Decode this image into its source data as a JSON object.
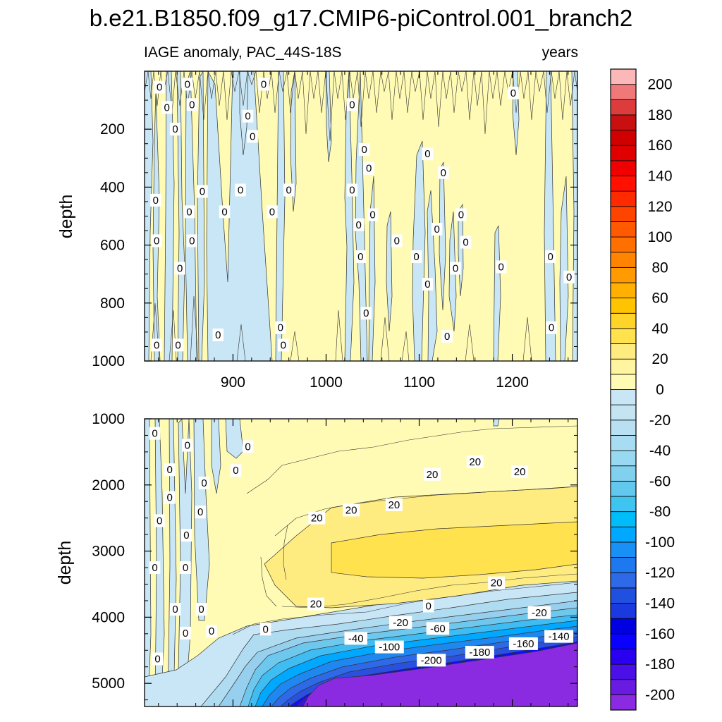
{
  "chart_data": [
    {
      "type": "heatmap",
      "title": "b.e21.B1850.f09_g17.CMIP6-piControl.001_branch2",
      "left_label": "IAGE anomaly, PAC_44S-18S",
      "right_label": "years",
      "ylabel": "depth",
      "xlim": [
        805,
        1270
      ],
      "ylim": [
        1000,
        0
      ],
      "x_ticks": [
        900,
        1000,
        1100,
        1200
      ],
      "x_tick_labels": [
        "900",
        "1000",
        "1100",
        "1200"
      ],
      "y_ticks": [
        200,
        400,
        600,
        800,
        1000
      ],
      "y_tick_labels": [
        "200",
        "400",
        "600",
        "800",
        "1000"
      ],
      "description_levels": "field alternates between 0..10 (pale yellow) and -10..0 (pale blue) with many narrow zero-contour bands",
      "contour_labels": [
        {
          "text": "0",
          "x": 821,
          "depth": 55
        },
        {
          "text": "0",
          "x": 851,
          "depth": 45
        },
        {
          "text": "0",
          "x": 933,
          "depth": 45
        },
        {
          "text": "0",
          "x": 829,
          "depth": 125
        },
        {
          "text": "0",
          "x": 856,
          "depth": 115
        },
        {
          "text": "0",
          "x": 1028,
          "depth": 115
        },
        {
          "text": "0",
          "x": 1201,
          "depth": 75
        },
        {
          "text": "0",
          "x": 838,
          "depth": 200
        },
        {
          "text": "0",
          "x": 916,
          "depth": 155
        },
        {
          "text": "0",
          "x": 921,
          "depth": 225
        },
        {
          "text": "0",
          "x": 1041,
          "depth": 270
        },
        {
          "text": "0",
          "x": 1109,
          "depth": 285
        },
        {
          "text": "0",
          "x": 1046,
          "depth": 335
        },
        {
          "text": "0",
          "x": 1126,
          "depth": 350
        },
        {
          "text": "0",
          "x": 867,
          "depth": 415
        },
        {
          "text": "0",
          "x": 908,
          "depth": 410
        },
        {
          "text": "0",
          "x": 960,
          "depth": 410
        },
        {
          "text": "0",
          "x": 1028,
          "depth": 410
        },
        {
          "text": "0",
          "x": 817,
          "depth": 445
        },
        {
          "text": "0",
          "x": 853,
          "depth": 485
        },
        {
          "text": "0",
          "x": 891,
          "depth": 485
        },
        {
          "text": "0",
          "x": 942,
          "depth": 485
        },
        {
          "text": "0",
          "x": 1050,
          "depth": 495
        },
        {
          "text": "0",
          "x": 1145,
          "depth": 495
        },
        {
          "text": "0",
          "x": 1035,
          "depth": 530
        },
        {
          "text": "0",
          "x": 1119,
          "depth": 545
        },
        {
          "text": "0",
          "x": 1150,
          "depth": 590
        },
        {
          "text": "0",
          "x": 818,
          "depth": 585
        },
        {
          "text": "0",
          "x": 856,
          "depth": 585
        },
        {
          "text": "0",
          "x": 1076,
          "depth": 585
        },
        {
          "text": "0",
          "x": 1037,
          "depth": 640
        },
        {
          "text": "0",
          "x": 1097,
          "depth": 640
        },
        {
          "text": "0",
          "x": 1241,
          "depth": 640
        },
        {
          "text": "0",
          "x": 843,
          "depth": 680
        },
        {
          "text": "0",
          "x": 1139,
          "depth": 680
        },
        {
          "text": "0",
          "x": 1188,
          "depth": 675
        },
        {
          "text": "0",
          "x": 1261,
          "depth": 710
        },
        {
          "text": "0",
          "x": 1109,
          "depth": 735
        },
        {
          "text": "0",
          "x": 1043,
          "depth": 835
        },
        {
          "text": "0",
          "x": 1242,
          "depth": 885
        },
        {
          "text": "0",
          "x": 951,
          "depth": 885
        },
        {
          "text": "0",
          "x": 884,
          "depth": 910
        },
        {
          "text": "0",
          "x": 1130,
          "depth": 915
        },
        {
          "text": "0",
          "x": 818,
          "depth": 945
        },
        {
          "text": "0",
          "x": 841,
          "depth": 945
        },
        {
          "text": "0",
          "x": 954,
          "depth": 945
        }
      ]
    },
    {
      "type": "heatmap",
      "ylabel": "depth",
      "xlim": [
        805,
        1270
      ],
      "ylim": [
        5350,
        1000
      ],
      "x_ticks": [
        900,
        1000,
        1100,
        1200
      ],
      "y_ticks": [
        1000,
        2000,
        3000,
        4000,
        5000
      ],
      "y_tick_labels": [
        "1000",
        "2000",
        "3000",
        "4000",
        "5000"
      ],
      "description_levels": "0..20 yellow above ~4000 m, 20..40 core around 2500-3500 m, strongly negative (down to below -200) near the bottom, deepening eastward",
      "contour_labels": [
        {
          "text": "0",
          "x": 816,
          "depth": 1220
        },
        {
          "text": "0",
          "x": 851,
          "depth": 1400
        },
        {
          "text": "0",
          "x": 916,
          "depth": 1420
        },
        {
          "text": "0",
          "x": 832,
          "depth": 1770
        },
        {
          "text": "0",
          "x": 903,
          "depth": 1780
        },
        {
          "text": "0",
          "x": 869,
          "depth": 1970
        },
        {
          "text": "0",
          "x": 832,
          "depth": 2190
        },
        {
          "text": "0",
          "x": 865,
          "depth": 2410
        },
        {
          "text": "0",
          "x": 821,
          "depth": 2540
        },
        {
          "text": "0",
          "x": 850,
          "depth": 2760
        },
        {
          "text": "0",
          "x": 816,
          "depth": 3250
        },
        {
          "text": "0",
          "x": 849,
          "depth": 3250
        },
        {
          "text": "0",
          "x": 838,
          "depth": 3880
        },
        {
          "text": "0",
          "x": 866,
          "depth": 3880
        },
        {
          "text": "0",
          "x": 849,
          "depth": 4240
        },
        {
          "text": "0",
          "x": 877,
          "depth": 4210
        },
        {
          "text": "0",
          "x": 819,
          "depth": 4630
        },
        {
          "text": "0",
          "x": 935,
          "depth": 4180
        },
        {
          "text": "0",
          "x": 1110,
          "depth": 3830
        },
        {
          "text": "20",
          "x": 1160,
          "depth": 1650
        },
        {
          "text": "20",
          "x": 1114,
          "depth": 1840
        },
        {
          "text": "20",
          "x": 1208,
          "depth": 1800
        },
        {
          "text": "20",
          "x": 990,
          "depth": 2500
        },
        {
          "text": "20",
          "x": 1027,
          "depth": 2380
        },
        {
          "text": "20",
          "x": 1073,
          "depth": 2300
        },
        {
          "text": "20",
          "x": 1183,
          "depth": 3480
        },
        {
          "text": "20",
          "x": 989,
          "depth": 3800
        },
        {
          "text": "-20",
          "x": 1229,
          "depth": 3930
        },
        {
          "text": "-20",
          "x": 1080,
          "depth": 4080
        },
        {
          "text": "-60",
          "x": 1120,
          "depth": 4170
        },
        {
          "text": "-40",
          "x": 1032,
          "depth": 4320
        },
        {
          "text": "-100",
          "x": 1068,
          "depth": 4450
        },
        {
          "text": "-200",
          "x": 1113,
          "depth": 4650
        },
        {
          "text": "-180",
          "x": 1165,
          "depth": 4530
        },
        {
          "text": "-160",
          "x": 1212,
          "depth": 4400
        },
        {
          "text": "-140",
          "x": 1250,
          "depth": 4290
        }
      ]
    },
    {
      "type": "colorbar",
      "levels": [
        -210,
        -200,
        -190,
        -180,
        -170,
        -160,
        -150,
        -140,
        -130,
        -120,
        -110,
        -100,
        -90,
        -80,
        -70,
        -60,
        -50,
        -40,
        -30,
        -20,
        -10,
        0,
        10,
        20,
        30,
        40,
        50,
        60,
        70,
        80,
        90,
        100,
        110,
        120,
        130,
        140,
        150,
        160,
        170,
        180,
        190,
        200,
        210
      ],
      "colors": [
        "#8a2be2",
        "#6a1be2",
        "#4b10e8",
        "#2a00f0",
        "#0a00ff",
        "#0000e0",
        "#1a3ae0",
        "#2050e0",
        "#2e6ae8",
        "#1e78f0",
        "#1890f5",
        "#00a8ff",
        "#00bcf8",
        "#3fc4f0",
        "#62c8ee",
        "#80d0ee",
        "#98d8f0",
        "#a8dcf2",
        "#b8e0f2",
        "#c4e4f2",
        "#c8e6f6",
        "#fffbb4",
        "#fff4a0",
        "#ffec80",
        "#ffe24e",
        "#ffd428",
        "#ffc400",
        "#ffb000",
        "#ff9a00",
        "#ff8400",
        "#ff7000",
        "#ff5a00",
        "#ff4400",
        "#ff2a00",
        "#ff1000",
        "#f00000",
        "#e00000",
        "#d00000",
        "#c81010",
        "#dc3c3c",
        "#f07878",
        "#fcb8b8"
      ],
      "tick_labels": [
        "-200",
        "-180",
        "-160",
        "-140",
        "-120",
        "-100",
        "-80",
        "-60",
        "-40",
        "-20",
        "0",
        "20",
        "40",
        "60",
        "80",
        "100",
        "120",
        "140",
        "160",
        "180",
        "200"
      ]
    }
  ]
}
